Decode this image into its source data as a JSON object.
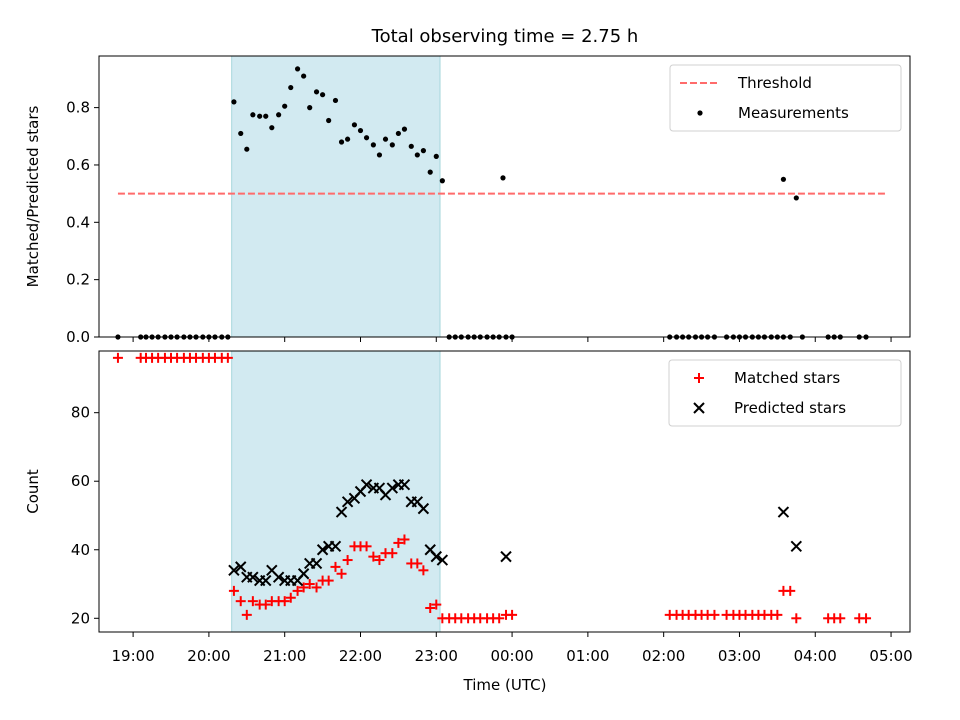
{
  "chart_data": {
    "type": "scatter",
    "title": "Total observing time = 2.75 h",
    "xlabel": "Time (UTC)",
    "x_unit": "hours UTC since 19:00",
    "xlim": [
      -0.45,
      10.25
    ],
    "x_ticks": [
      0,
      1,
      2,
      3,
      4,
      5,
      6,
      7,
      8,
      9,
      10
    ],
    "x_tick_labels": [
      "19:00",
      "20:00",
      "21:00",
      "22:00",
      "23:00",
      "00:00",
      "01:00",
      "02:00",
      "03:00",
      "04:00",
      "05:00"
    ],
    "observing_window": {
      "start": 1.3,
      "end": 4.05,
      "color": "#add8e6"
    },
    "panels": [
      {
        "id": "top",
        "ylabel": "Matched/Predicted stars",
        "ylim": [
          0,
          0.98
        ],
        "y_ticks": [
          0,
          0.2,
          0.4,
          0.6,
          0.8
        ],
        "y_tick_labels": [
          "0.0",
          "0.2",
          "0.4",
          "0.6",
          "0.8"
        ],
        "threshold": {
          "name": "Threshold",
          "value": 0.5,
          "x_range": [
            -0.2,
            9.95
          ],
          "color": "#ff6b6b"
        },
        "series": [
          {
            "name": "Measurements",
            "marker": "dot",
            "color": "#000000",
            "points": [
              [
                -0.2,
                0
              ],
              [
                0.1,
                0
              ],
              [
                0.17,
                0
              ],
              [
                0.25,
                0
              ],
              [
                0.33,
                0
              ],
              [
                0.42,
                0
              ],
              [
                0.5,
                0
              ],
              [
                0.58,
                0
              ],
              [
                0.67,
                0
              ],
              [
                0.75,
                0
              ],
              [
                0.83,
                0
              ],
              [
                0.92,
                0
              ],
              [
                1.0,
                0
              ],
              [
                1.08,
                0
              ],
              [
                1.17,
                0
              ],
              [
                1.25,
                0
              ],
              [
                1.33,
                0.82
              ],
              [
                1.42,
                0.71
              ],
              [
                1.5,
                0.655
              ],
              [
                1.58,
                0.775
              ],
              [
                1.67,
                0.77
              ],
              [
                1.75,
                0.77
              ],
              [
                1.83,
                0.73
              ],
              [
                1.92,
                0.775
              ],
              [
                2.0,
                0.805
              ],
              [
                2.08,
                0.87
              ],
              [
                2.17,
                0.935
              ],
              [
                2.25,
                0.91
              ],
              [
                2.33,
                0.8
              ],
              [
                2.42,
                0.855
              ],
              [
                2.5,
                0.845
              ],
              [
                2.58,
                0.755
              ],
              [
                2.67,
                0.825
              ],
              [
                2.75,
                0.68
              ],
              [
                2.83,
                0.69
              ],
              [
                2.92,
                0.74
              ],
              [
                3.0,
                0.72
              ],
              [
                3.08,
                0.695
              ],
              [
                3.17,
                0.67
              ],
              [
                3.25,
                0.635
              ],
              [
                3.33,
                0.69
              ],
              [
                3.42,
                0.67
              ],
              [
                3.5,
                0.71
              ],
              [
                3.58,
                0.725
              ],
              [
                3.67,
                0.665
              ],
              [
                3.75,
                0.635
              ],
              [
                3.83,
                0.65
              ],
              [
                3.92,
                0.575
              ],
              [
                4.0,
                0.63
              ],
              [
                4.08,
                0.545
              ],
              [
                4.17,
                0
              ],
              [
                4.25,
                0
              ],
              [
                4.33,
                0
              ],
              [
                4.42,
                0
              ],
              [
                4.5,
                0
              ],
              [
                4.58,
                0
              ],
              [
                4.67,
                0
              ],
              [
                4.75,
                0
              ],
              [
                4.83,
                0
              ],
              [
                4.92,
                0
              ],
              [
                5.0,
                0
              ],
              [
                4.88,
                0.555
              ],
              [
                7.08,
                0
              ],
              [
                7.17,
                0
              ],
              [
                7.25,
                0
              ],
              [
                7.33,
                0
              ],
              [
                7.42,
                0
              ],
              [
                7.5,
                0
              ],
              [
                7.58,
                0
              ],
              [
                7.67,
                0
              ],
              [
                7.83,
                0
              ],
              [
                7.92,
                0
              ],
              [
                8.0,
                0
              ],
              [
                8.08,
                0
              ],
              [
                8.17,
                0
              ],
              [
                8.25,
                0
              ],
              [
                8.33,
                0
              ],
              [
                8.42,
                0
              ],
              [
                8.5,
                0
              ],
              [
                8.58,
                0
              ],
              [
                8.67,
                0
              ],
              [
                8.83,
                0
              ],
              [
                8.58,
                0.55
              ],
              [
                8.75,
                0.485
              ],
              [
                9.17,
                0
              ],
              [
                9.25,
                0
              ],
              [
                9.33,
                0
              ],
              [
                9.58,
                0
              ],
              [
                9.67,
                0
              ]
            ]
          }
        ],
        "legend": {
          "position": "top-right"
        }
      },
      {
        "id": "bottom",
        "ylabel": "Count",
        "ylim": [
          16,
          98
        ],
        "y_ticks": [
          20,
          40,
          60,
          80
        ],
        "y_tick_labels": [
          "20",
          "40",
          "60",
          "80"
        ],
        "series": [
          {
            "name": "Matched stars",
            "marker": "plus",
            "color": "#ff0000",
            "points": [
              [
                -0.2,
                96
              ],
              [
                0.1,
                96
              ],
              [
                0.17,
                96
              ],
              [
                0.25,
                96
              ],
              [
                0.33,
                96
              ],
              [
                0.42,
                96
              ],
              [
                0.5,
                96
              ],
              [
                0.58,
                96
              ],
              [
                0.67,
                96
              ],
              [
                0.75,
                96
              ],
              [
                0.83,
                96
              ],
              [
                0.92,
                96
              ],
              [
                1.0,
                96
              ],
              [
                1.08,
                96
              ],
              [
                1.17,
                96
              ],
              [
                1.25,
                96
              ],
              [
                1.33,
                28
              ],
              [
                1.42,
                25
              ],
              [
                1.5,
                21
              ],
              [
                1.58,
                25
              ],
              [
                1.67,
                24
              ],
              [
                1.75,
                24
              ],
              [
                1.83,
                25
              ],
              [
                1.92,
                25
              ],
              [
                2.0,
                25
              ],
              [
                2.08,
                26
              ],
              [
                2.17,
                28
              ],
              [
                2.25,
                29
              ],
              [
                2.33,
                30
              ],
              [
                2.42,
                29
              ],
              [
                2.5,
                31
              ],
              [
                2.58,
                31
              ],
              [
                2.67,
                35
              ],
              [
                2.75,
                33
              ],
              [
                2.83,
                37
              ],
              [
                2.92,
                41
              ],
              [
                3.0,
                41
              ],
              [
                3.08,
                41
              ],
              [
                3.17,
                38
              ],
              [
                3.25,
                37
              ],
              [
                3.33,
                39
              ],
              [
                3.42,
                39
              ],
              [
                3.5,
                42
              ],
              [
                3.58,
                43
              ],
              [
                3.67,
                36
              ],
              [
                3.75,
                36
              ],
              [
                3.83,
                34
              ],
              [
                3.92,
                23
              ],
              [
                4.0,
                24
              ],
              [
                4.08,
                20
              ],
              [
                4.17,
                20
              ],
              [
                4.25,
                20
              ],
              [
                4.33,
                20
              ],
              [
                4.42,
                20
              ],
              [
                4.5,
                20
              ],
              [
                4.58,
                20
              ],
              [
                4.67,
                20
              ],
              [
                4.75,
                20
              ],
              [
                4.83,
                20
              ],
              [
                4.92,
                21
              ],
              [
                5.0,
                21
              ],
              [
                7.08,
                21
              ],
              [
                7.17,
                21
              ],
              [
                7.25,
                21
              ],
              [
                7.33,
                21
              ],
              [
                7.42,
                21
              ],
              [
                7.5,
                21
              ],
              [
                7.58,
                21
              ],
              [
                7.67,
                21
              ],
              [
                7.83,
                21
              ],
              [
                7.92,
                21
              ],
              [
                8.0,
                21
              ],
              [
                8.08,
                21
              ],
              [
                8.17,
                21
              ],
              [
                8.25,
                21
              ],
              [
                8.33,
                21
              ],
              [
                8.42,
                21
              ],
              [
                8.5,
                21
              ],
              [
                8.58,
                28
              ],
              [
                8.67,
                28
              ],
              [
                8.75,
                20
              ],
              [
                9.17,
                20
              ],
              [
                9.25,
                20
              ],
              [
                9.33,
                20
              ],
              [
                9.58,
                20
              ],
              [
                9.67,
                20
              ]
            ]
          },
          {
            "name": "Predicted stars",
            "marker": "x",
            "color": "#000000",
            "points": [
              [
                1.33,
                34
              ],
              [
                1.42,
                35
              ],
              [
                1.5,
                32
              ],
              [
                1.58,
                32
              ],
              [
                1.67,
                31
              ],
              [
                1.75,
                31
              ],
              [
                1.83,
                34
              ],
              [
                1.92,
                32
              ],
              [
                2.0,
                31
              ],
              [
                2.08,
                31
              ],
              [
                2.17,
                31
              ],
              [
                2.25,
                33
              ],
              [
                2.33,
                36
              ],
              [
                2.42,
                36
              ],
              [
                2.5,
                40
              ],
              [
                2.58,
                41
              ],
              [
                2.67,
                41
              ],
              [
                2.75,
                51
              ],
              [
                2.83,
                54
              ],
              [
                2.92,
                55
              ],
              [
                3.0,
                57
              ],
              [
                3.08,
                59
              ],
              [
                3.17,
                58
              ],
              [
                3.25,
                58
              ],
              [
                3.33,
                56
              ],
              [
                3.42,
                58
              ],
              [
                3.5,
                59
              ],
              [
                3.58,
                59
              ],
              [
                3.67,
                54
              ],
              [
                3.75,
                54
              ],
              [
                3.83,
                52
              ],
              [
                3.92,
                40
              ],
              [
                4.0,
                38
              ],
              [
                4.08,
                37
              ],
              [
                4.92,
                38
              ],
              [
                8.58,
                51
              ],
              [
                8.75,
                41
              ]
            ]
          }
        ],
        "legend": {
          "position": "top-right"
        }
      }
    ]
  }
}
